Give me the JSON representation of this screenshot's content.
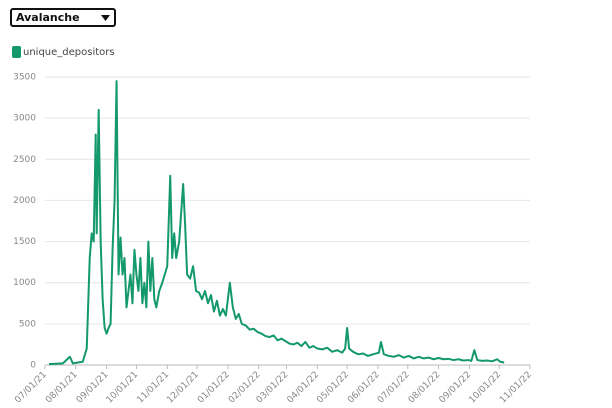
{
  "controls": {
    "dropdown": "Avalanche"
  },
  "chart_data": {
    "type": "line",
    "legend": "top-left",
    "grid": true,
    "x": [
      "07/05/21",
      "07/12/21",
      "07/19/21",
      "07/26/21",
      "07/29/21",
      "08/03/21",
      "08/08/21",
      "08/12/21",
      "08/15/21",
      "08/17/21",
      "08/19/21",
      "08/21/21",
      "08/22/21",
      "08/24/21",
      "08/26/21",
      "08/28/21",
      "08/30/21",
      "09/01/21",
      "09/03/21",
      "09/05/21",
      "09/07/21",
      "09/09/21",
      "09/11/21",
      "09/13/21",
      "09/15/21",
      "09/17/21",
      "09/19/21",
      "09/21/21",
      "09/23/21",
      "09/25/21",
      "09/27/21",
      "09/29/21",
      "10/01/21",
      "10/03/21",
      "10/05/21",
      "10/07/21",
      "10/09/21",
      "10/11/21",
      "10/13/21",
      "10/15/21",
      "10/17/21",
      "10/19/21",
      "10/21/21",
      "10/24/21",
      "10/27/21",
      "11/01/21",
      "11/04/21",
      "11/06/21",
      "11/08/21",
      "11/10/21",
      "11/13/21",
      "11/17/21",
      "11/19/21",
      "11/21/21",
      "11/24/21",
      "11/27/21",
      "11/30/21",
      "12/03/21",
      "12/06/21",
      "12/09/21",
      "12/12/21",
      "12/15/21",
      "12/18/21",
      "12/21/21",
      "12/24/21",
      "12/27/21",
      "12/30/21",
      "01/03/22",
      "01/06/22",
      "01/09/22",
      "01/12/22",
      "01/15/22",
      "01/19/22",
      "01/23/22",
      "01/27/22",
      "01/31/22",
      "02/04/22",
      "02/08/22",
      "02/12/22",
      "02/16/22",
      "02/20/22",
      "02/24/22",
      "02/28/22",
      "03/04/22",
      "03/08/22",
      "03/12/22",
      "03/16/22",
      "03/20/22",
      "03/24/22",
      "03/28/22",
      "04/01/22",
      "04/06/22",
      "04/11/22",
      "04/16/22",
      "04/21/22",
      "04/26/22",
      "04/29/22",
      "05/01/22",
      "05/03/22",
      "05/07/22",
      "05/12/22",
      "05/17/22",
      "05/22/22",
      "05/27/22",
      "06/02/22",
      "06/04/22",
      "06/07/22",
      "06/12/22",
      "06/17/22",
      "06/22/22",
      "06/27/22",
      "07/02/22",
      "07/07/22",
      "07/12/22",
      "07/17/22",
      "07/22/22",
      "07/27/22",
      "08/01/22",
      "08/06/22",
      "08/11/22",
      "08/16/22",
      "08/21/22",
      "08/26/22",
      "08/31/22",
      "09/03/22",
      "09/06/22",
      "09/09/22",
      "09/14/22",
      "09/19/22",
      "09/24/22",
      "09/29/22",
      "10/02/22",
      "10/06/22"
    ],
    "series": [
      {
        "name": "unique_depositors",
        "color": "#13996b",
        "values": [
          10,
          15,
          20,
          100,
          20,
          30,
          40,
          200,
          1300,
          1600,
          1500,
          2800,
          1600,
          3100,
          1500,
          800,
          450,
          380,
          450,
          500,
          1400,
          2000,
          3450,
          1100,
          1550,
          1100,
          1300,
          700,
          900,
          1100,
          750,
          1400,
          1100,
          900,
          1300,
          750,
          1000,
          700,
          1500,
          900,
          1300,
          800,
          700,
          900,
          1000,
          1200,
          2300,
          1300,
          1600,
          1300,
          1500,
          2200,
          1700,
          1100,
          1050,
          1200,
          900,
          880,
          800,
          900,
          750,
          850,
          650,
          780,
          600,
          680,
          600,
          1000,
          700,
          560,
          620,
          500,
          480,
          430,
          440,
          400,
          380,
          350,
          340,
          360,
          300,
          320,
          290,
          260,
          250,
          270,
          230,
          280,
          210,
          230,
          200,
          190,
          210,
          160,
          180,
          150,
          200,
          450,
          200,
          160,
          130,
          140,
          110,
          130,
          150,
          280,
          130,
          110,
          100,
          120,
          90,
          110,
          80,
          100,
          80,
          90,
          70,
          85,
          70,
          75,
          60,
          70,
          55,
          60,
          50,
          180,
          60,
          50,
          55,
          45,
          70,
          40,
          30
        ]
      }
    ],
    "xlim": [
      "07/01/21",
      "11/01/22"
    ],
    "xticks": [
      "07/01/21",
      "08/01/21",
      "09/01/21",
      "10/01/21",
      "11/01/21",
      "12/01/21",
      "01/01/22",
      "02/01/22",
      "03/01/22",
      "04/01/22",
      "05/01/22",
      "06/01/22",
      "07/01/22",
      "08/01/22",
      "09/01/22",
      "10/01/22",
      "11/01/22"
    ],
    "ylim": [
      0,
      3500
    ],
    "yticks": [
      0,
      500,
      1000,
      1500,
      2000,
      2500,
      3000,
      3500
    ]
  }
}
